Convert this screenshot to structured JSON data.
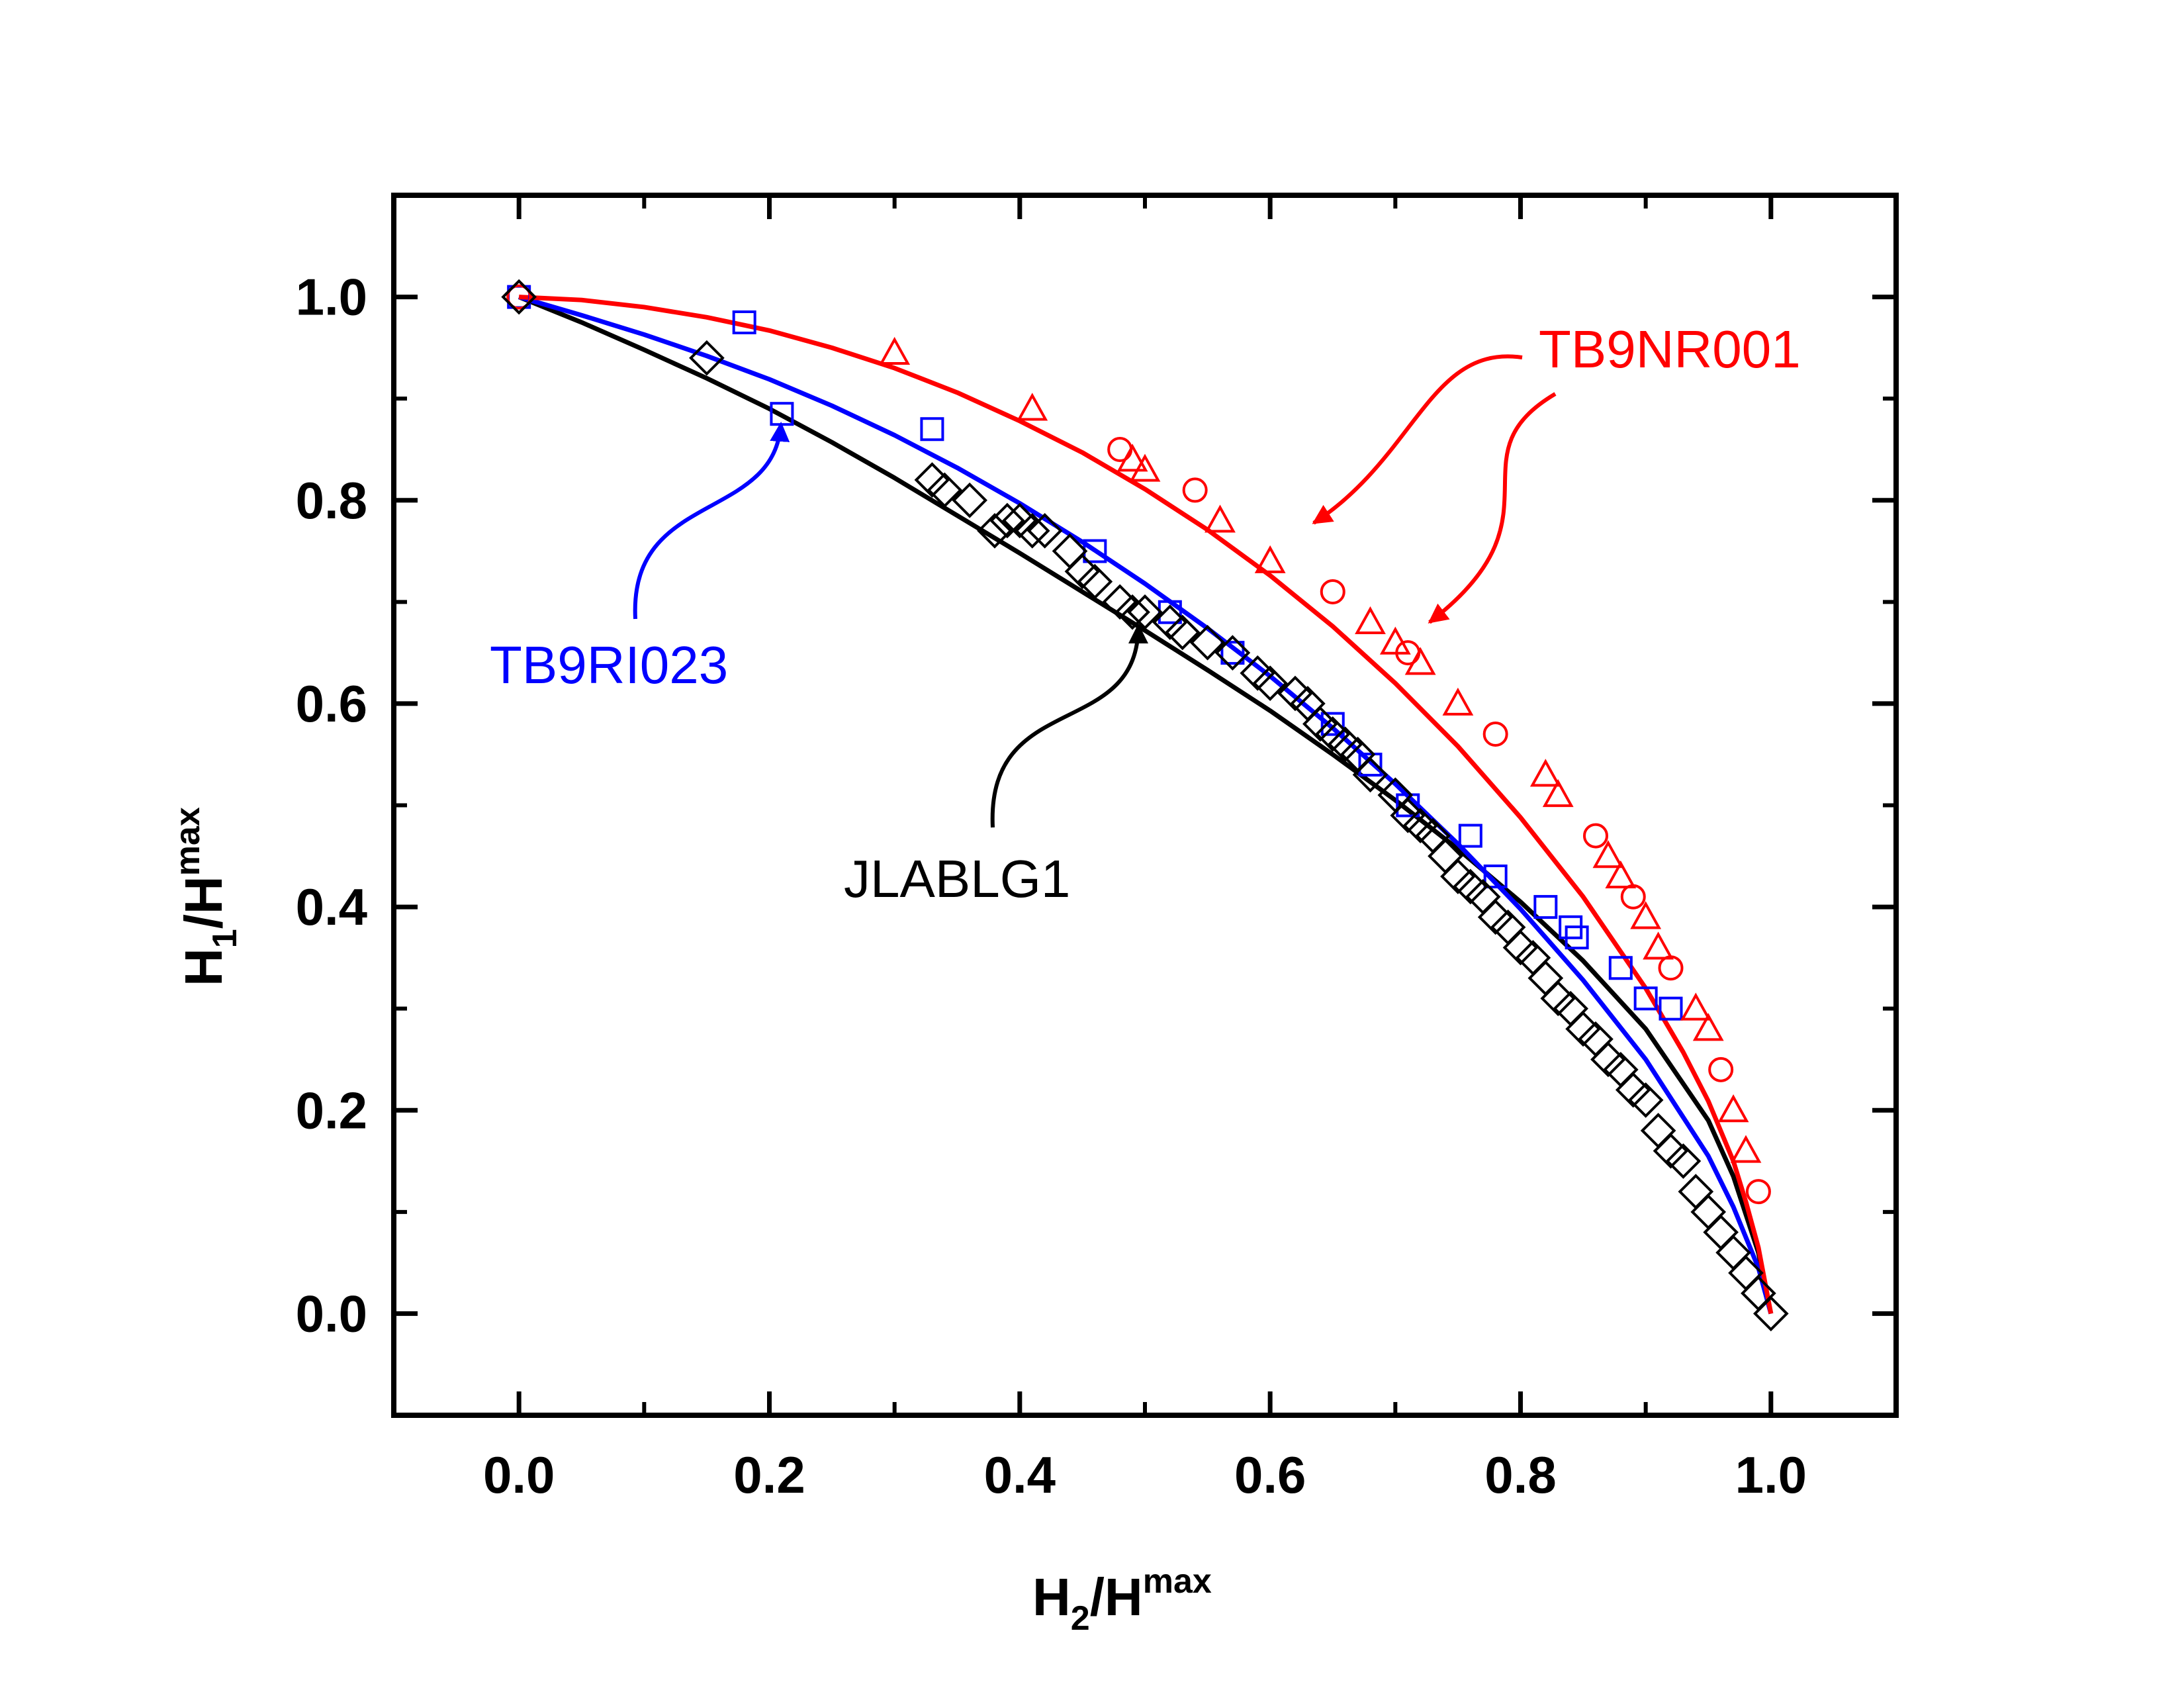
{
  "chart_data": {
    "type": "scatter",
    "title": "",
    "xlabel": {
      "main": "H",
      "sub": "2",
      "mid": "/H",
      "sup": "max"
    },
    "ylabel": {
      "main": "H",
      "sub": "1",
      "mid": "/H",
      "sup": "max"
    },
    "xlim": [
      -0.1,
      1.1
    ],
    "ylim": [
      -0.1,
      1.1
    ],
    "xticks": [
      0.0,
      0.2,
      0.4,
      0.6,
      0.8,
      1.0
    ],
    "yticks": [
      0.0,
      0.2,
      0.4,
      0.6,
      0.8,
      1.0
    ],
    "xtick_labels": [
      "0.0",
      "0.2",
      "0.4",
      "0.6",
      "0.8",
      "1.0"
    ],
    "ytick_labels": [
      "0.0",
      "0.2",
      "0.4",
      "0.6",
      "0.8",
      "1.0"
    ],
    "grid": false,
    "series": [
      {
        "name": "JLABLG1",
        "color": "#000000",
        "marker": "diamond",
        "x": [
          0.0,
          0.15,
          0.33,
          0.34,
          0.36,
          0.38,
          0.39,
          0.4,
          0.41,
          0.42,
          0.44,
          0.45,
          0.46,
          0.48,
          0.49,
          0.5,
          0.52,
          0.53,
          0.55,
          0.57,
          0.59,
          0.6,
          0.62,
          0.63,
          0.64,
          0.65,
          0.66,
          0.67,
          0.68,
          0.7,
          0.71,
          0.72,
          0.73,
          0.74,
          0.75,
          0.76,
          0.77,
          0.78,
          0.79,
          0.8,
          0.81,
          0.82,
          0.83,
          0.84,
          0.85,
          0.86,
          0.87,
          0.88,
          0.89,
          0.9,
          0.91,
          0.92,
          0.93,
          0.94,
          0.95,
          0.96,
          0.97,
          0.98,
          0.99,
          1.0
        ],
        "y": [
          1.0,
          0.94,
          0.82,
          0.81,
          0.8,
          0.77,
          0.78,
          0.78,
          0.77,
          0.77,
          0.75,
          0.73,
          0.72,
          0.7,
          0.69,
          0.69,
          0.68,
          0.67,
          0.66,
          0.65,
          0.63,
          0.62,
          0.61,
          0.6,
          0.58,
          0.57,
          0.56,
          0.55,
          0.53,
          0.51,
          0.49,
          0.48,
          0.47,
          0.45,
          0.43,
          0.42,
          0.41,
          0.39,
          0.38,
          0.36,
          0.35,
          0.33,
          0.31,
          0.3,
          0.28,
          0.27,
          0.25,
          0.24,
          0.22,
          0.21,
          0.18,
          0.16,
          0.15,
          0.12,
          0.1,
          0.08,
          0.06,
          0.04,
          0.02,
          0.0
        ],
        "fit": {
          "x": [
            0.0,
            0.05,
            0.1,
            0.15,
            0.2,
            0.25,
            0.3,
            0.35,
            0.4,
            0.45,
            0.5,
            0.55,
            0.6,
            0.65,
            0.7,
            0.75,
            0.8,
            0.85,
            0.9,
            0.95,
            0.97,
            0.99,
            1.0
          ],
          "y": [
            1.0,
            0.975,
            0.948,
            0.92,
            0.89,
            0.857,
            0.822,
            0.785,
            0.748,
            0.71,
            0.672,
            0.633,
            0.593,
            0.55,
            0.505,
            0.457,
            0.405,
            0.347,
            0.28,
            0.19,
            0.135,
            0.06,
            0.0
          ]
        }
      },
      {
        "name": "TB9RI023",
        "color": "#0000ff",
        "marker": "square",
        "x": [
          0.0,
          0.18,
          0.21,
          0.33,
          0.46,
          0.52,
          0.57,
          0.65,
          0.68,
          0.71,
          0.76,
          0.78,
          0.82,
          0.84,
          0.845,
          0.88,
          0.9,
          0.92
        ],
        "y": [
          1.0,
          0.975,
          0.885,
          0.87,
          0.75,
          0.69,
          0.65,
          0.58,
          0.54,
          0.5,
          0.47,
          0.43,
          0.4,
          0.38,
          0.37,
          0.34,
          0.31,
          0.3
        ],
        "fit": {
          "x": [
            0.0,
            0.05,
            0.1,
            0.15,
            0.2,
            0.25,
            0.3,
            0.35,
            0.4,
            0.45,
            0.5,
            0.55,
            0.6,
            0.65,
            0.7,
            0.75,
            0.8,
            0.85,
            0.9,
            0.95,
            0.97,
            0.99,
            1.0
          ],
          "y": [
            1.0,
            0.982,
            0.963,
            0.942,
            0.919,
            0.893,
            0.864,
            0.832,
            0.797,
            0.759,
            0.718,
            0.674,
            0.627,
            0.576,
            0.521,
            0.462,
            0.398,
            0.328,
            0.25,
            0.155,
            0.105,
            0.045,
            0.0
          ]
        }
      },
      {
        "name": "TB9NR001",
        "color": "#ff0000",
        "marker": "circle/triangle",
        "x": [
          0.0,
          0.3,
          0.41,
          0.48,
          0.49,
          0.5,
          0.54,
          0.56,
          0.6,
          0.65,
          0.68,
          0.7,
          0.71,
          0.72,
          0.75,
          0.78,
          0.82,
          0.83,
          0.86,
          0.87,
          0.88,
          0.89,
          0.9,
          0.91,
          0.92,
          0.94,
          0.95,
          0.96,
          0.97,
          0.98,
          0.99
        ],
        "y": [
          1.0,
          0.945,
          0.89,
          0.85,
          0.84,
          0.83,
          0.81,
          0.78,
          0.74,
          0.71,
          0.68,
          0.66,
          0.65,
          0.64,
          0.6,
          0.57,
          0.53,
          0.51,
          0.47,
          0.45,
          0.43,
          0.41,
          0.39,
          0.36,
          0.34,
          0.3,
          0.28,
          0.24,
          0.2,
          0.16,
          0.12
        ],
        "fit": {
          "x": [
            0.0,
            0.05,
            0.1,
            0.15,
            0.2,
            0.25,
            0.3,
            0.35,
            0.4,
            0.45,
            0.5,
            0.55,
            0.6,
            0.65,
            0.7,
            0.75,
            0.8,
            0.85,
            0.9,
            0.93,
            0.95,
            0.97,
            0.98,
            0.99,
            1.0
          ],
          "y": [
            1.0,
            0.997,
            0.99,
            0.98,
            0.967,
            0.95,
            0.93,
            0.906,
            0.878,
            0.847,
            0.811,
            0.771,
            0.726,
            0.676,
            0.62,
            0.558,
            0.488,
            0.41,
            0.32,
            0.257,
            0.209,
            0.15,
            0.11,
            0.065,
            0.0
          ]
        }
      }
    ],
    "annotations": [
      {
        "text": "TB9NR001",
        "color": "#ff0000"
      },
      {
        "text": "TB9RI023",
        "color": "#0000ff"
      },
      {
        "text": "JLABLG1",
        "color": "#000000"
      }
    ]
  }
}
